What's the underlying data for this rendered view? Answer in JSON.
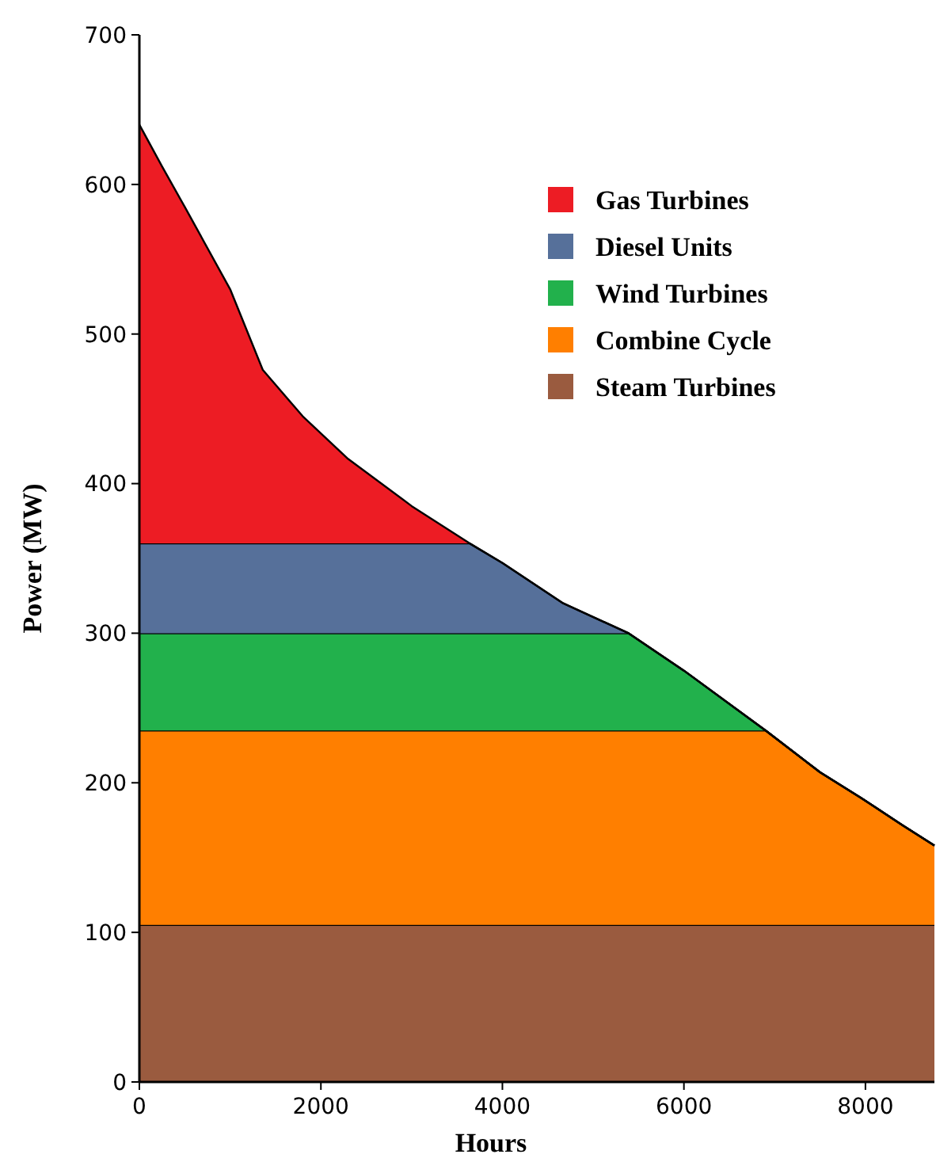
{
  "chart_data": {
    "type": "area",
    "stacked": true,
    "xlabel": "Hours",
    "ylabel": "Power (MW)",
    "x": [
      0,
      250,
      500,
      1000,
      1360,
      1800,
      2290,
      3000,
      3640,
      4000,
      4670,
      5390,
      6000,
      6900,
      7500,
      7950,
      8400,
      8760
    ],
    "series": [
      {
        "name": "Steam Turbines",
        "color": "#9a5b3f",
        "values": [
          105,
          105,
          105,
          105,
          105,
          105,
          105,
          105,
          105,
          105,
          105,
          105,
          105,
          105,
          105,
          105,
          105,
          105
        ]
      },
      {
        "name": "Combine Cycle",
        "color": "#ff7f00",
        "values": [
          130,
          130,
          130,
          130,
          130,
          130,
          130,
          130,
          130,
          130,
          130,
          130,
          130,
          130,
          102,
          85,
          67,
          53
        ]
      },
      {
        "name": "Wind Turbines",
        "color": "#22b14c",
        "values": [
          65,
          65,
          65,
          65,
          65,
          65,
          65,
          65,
          65,
          65,
          65,
          65,
          40,
          0,
          0,
          0,
          0,
          0
        ]
      },
      {
        "name": "Diesel Units",
        "color": "#56709a",
        "values": [
          60,
          60,
          60,
          60,
          60,
          60,
          60,
          60,
          60,
          47,
          20,
          0,
          0,
          0,
          0,
          0,
          0,
          0
        ]
      },
      {
        "name": "Gas Turbines",
        "color": "#ed1c24",
        "values": [
          280,
          252,
          225,
          170,
          116,
          85,
          57,
          25,
          0,
          0,
          0,
          0,
          0,
          0,
          0,
          0,
          0,
          0
        ]
      }
    ],
    "xlim": [
      0,
      8760
    ],
    "xticks": [
      0,
      2000,
      4000,
      6000,
      8000
    ],
    "ylim": [
      0,
      700
    ],
    "yticks": [
      0,
      100,
      200,
      300,
      400,
      500,
      600,
      700
    ],
    "grid": false,
    "legend": "top right"
  }
}
